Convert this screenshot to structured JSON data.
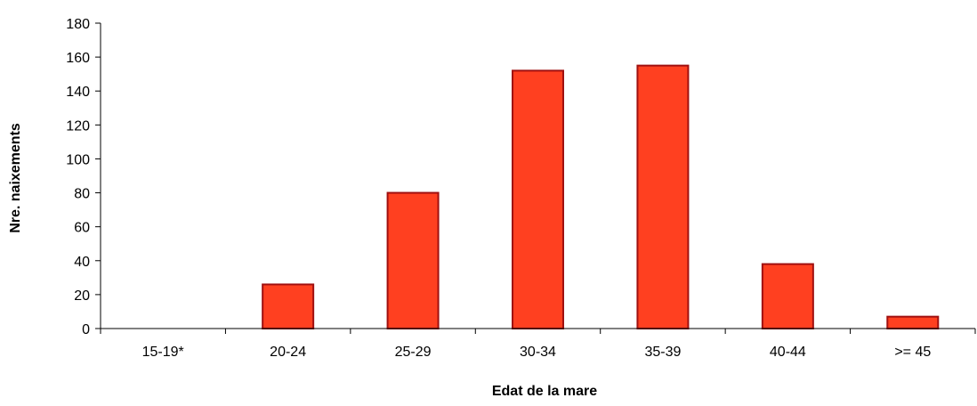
{
  "chart_data": {
    "type": "bar",
    "title": "",
    "xlabel": "Edat de la mare",
    "ylabel": "Nre. naixements",
    "categories": [
      "15-19*",
      "20-24",
      "25-29",
      "30-34",
      "35-39",
      "40-44",
      ">= 45"
    ],
    "series": [
      {
        "values": [
          0,
          26,
          80,
          152,
          155,
          38,
          7
        ],
        "color": "#ff4020",
        "border_color": "#a01010"
      }
    ],
    "ylim": [
      0,
      180
    ],
    "yticks": [
      0,
      20,
      40,
      60,
      80,
      100,
      120,
      140,
      160,
      180
    ],
    "grid": false,
    "legend": "none"
  }
}
